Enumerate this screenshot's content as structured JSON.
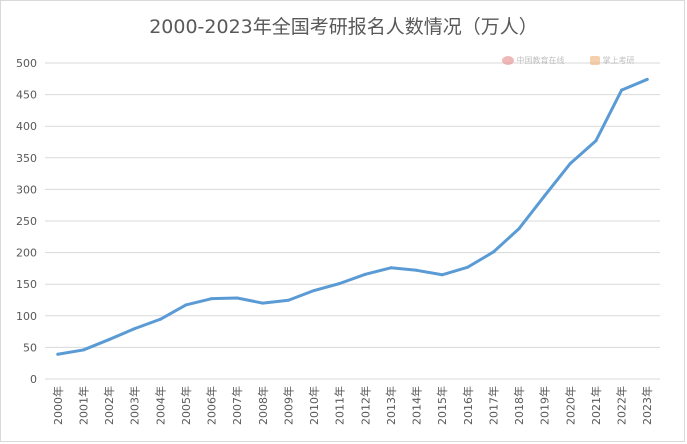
{
  "title": "2000-2023年全国考研报名人数情况（万人）",
  "watermarks": {
    "left_text": "中国教育在线",
    "right_text": "掌上考研"
  },
  "chart_data": {
    "type": "line",
    "title": "2000-2023年全国考研报名人数情况（万人）",
    "categories": [
      "2000年",
      "2001年",
      "2002年",
      "2003年",
      "2004年",
      "2005年",
      "2006年",
      "2007年",
      "2008年",
      "2009年",
      "2010年",
      "2011年",
      "2012年",
      "2013年",
      "2014年",
      "2015年",
      "2016年",
      "2017年",
      "2018年",
      "2019年",
      "2020年",
      "2021年",
      "2022年",
      "2023年"
    ],
    "series": [
      {
        "values": [
          39.2,
          46,
          62.4,
          79.7,
          94.5,
          117.2,
          127.1,
          128.2,
          120,
          124.6,
          140,
          151.1,
          165.6,
          176,
          172,
          164.9,
          177,
          201,
          238,
          290,
          341,
          377,
          457,
          474
        ],
        "color": "#5b9bd5"
      }
    ],
    "ylim": [
      0,
      500
    ],
    "yticks": [
      0,
      50,
      100,
      150,
      200,
      250,
      300,
      350,
      400,
      450,
      500
    ],
    "grid": true,
    "legend": "none",
    "colors": {
      "line": "#5b9bd5",
      "grid": "#d9d9d9",
      "tick_text": "#595959"
    }
  }
}
